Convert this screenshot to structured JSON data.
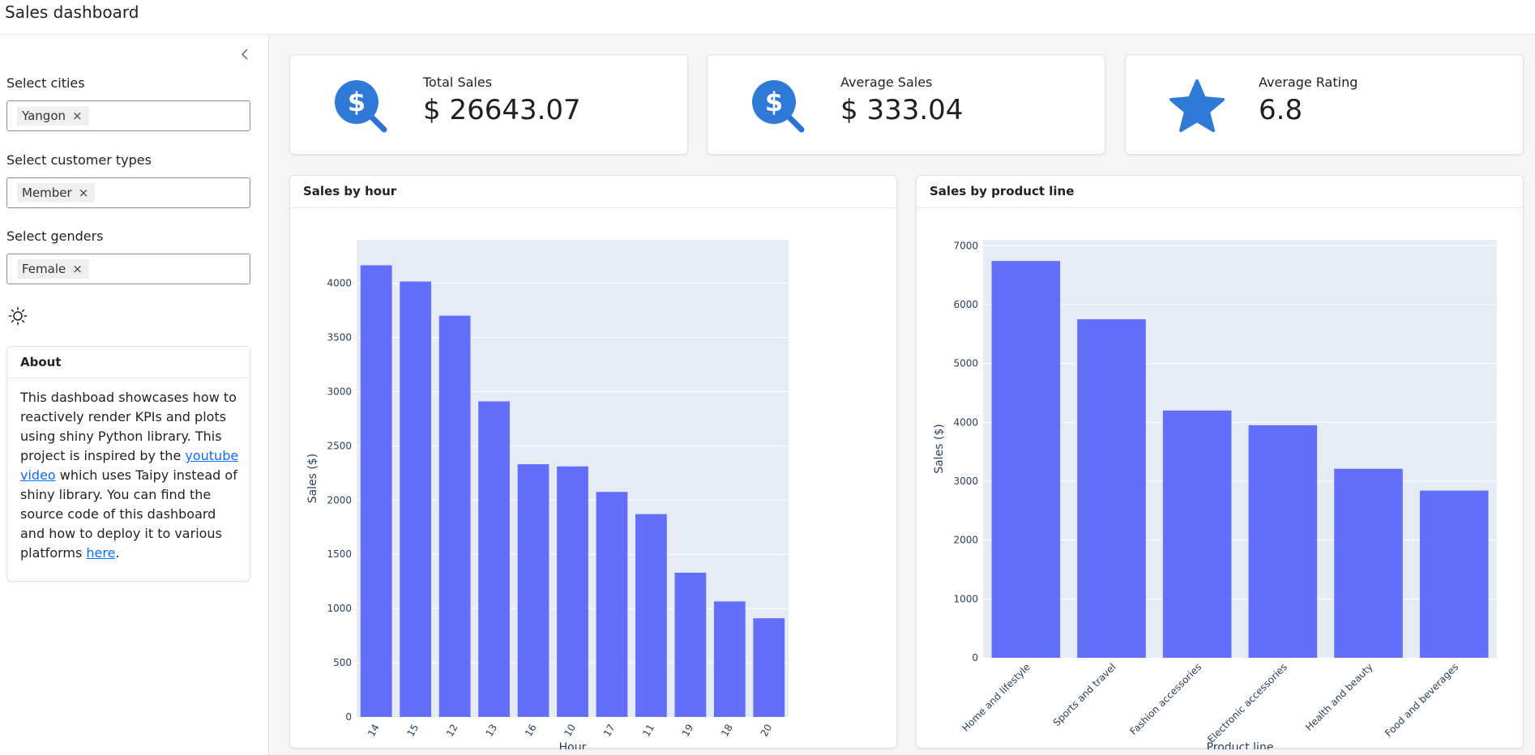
{
  "app": {
    "title": "Sales dashboard"
  },
  "sidebar": {
    "filters": [
      {
        "label": "Select cities",
        "selected": "Yangon"
      },
      {
        "label": "Select customer types",
        "selected": "Member"
      },
      {
        "label": "Select genders",
        "selected": "Female"
      }
    ],
    "remove_glyph": "×",
    "about": {
      "title": "About",
      "text_1": "This dashboad showcases how to reactively render KPIs and plots using shiny Python library. This project is inspired by the ",
      "link_1": "youtube video",
      "text_2": " which uses Taipy instead of shiny library. You can find the source code of this dashboard and how to deploy it to various platforms ",
      "link_2": "here",
      "text_3": "."
    }
  },
  "kpis": [
    {
      "label": "Total Sales",
      "value": "$ 26643.07",
      "icon": "dollar-search-icon"
    },
    {
      "label": "Average Sales",
      "value": "$ 333.04",
      "icon": "dollar-search-icon"
    },
    {
      "label": "Average Rating",
      "value": "6.8",
      "icon": "star-icon"
    }
  ],
  "colors": {
    "bar": "#636efa",
    "plot_bg": "#e5ecf6",
    "icon": "#2f7ad6",
    "text": "#2a3f5f"
  },
  "chart_data": [
    {
      "type": "bar",
      "title": "Sales by hour",
      "categories": [
        "14",
        "15",
        "12",
        "13",
        "16",
        "10",
        "17",
        "11",
        "19",
        "18",
        "20"
      ],
      "values": [
        4165,
        4015,
        3700,
        2910,
        2330,
        2310,
        2075,
        1870,
        1330,
        1065,
        910
      ],
      "xlabel": "Hour",
      "ylabel": "Sales ($)",
      "ylim": [
        0,
        4400
      ],
      "yticks": [
        0,
        500,
        1000,
        1500,
        2000,
        2500,
        3000,
        3500,
        4000
      ]
    },
    {
      "type": "bar",
      "title": "Sales by product line",
      "categories": [
        "Home and lifestyle",
        "Sports and travel",
        "Fashion accessories",
        "Electronic accessories",
        "Health and beauty",
        "Food and beverages"
      ],
      "values": [
        6740,
        5750,
        4200,
        3950,
        3210,
        2840
      ],
      "xlabel": "Product line",
      "ylabel": "Sales ($)",
      "ylim": [
        0,
        7100
      ],
      "yticks": [
        0,
        1000,
        2000,
        3000,
        4000,
        5000,
        6000,
        7000
      ]
    }
  ]
}
